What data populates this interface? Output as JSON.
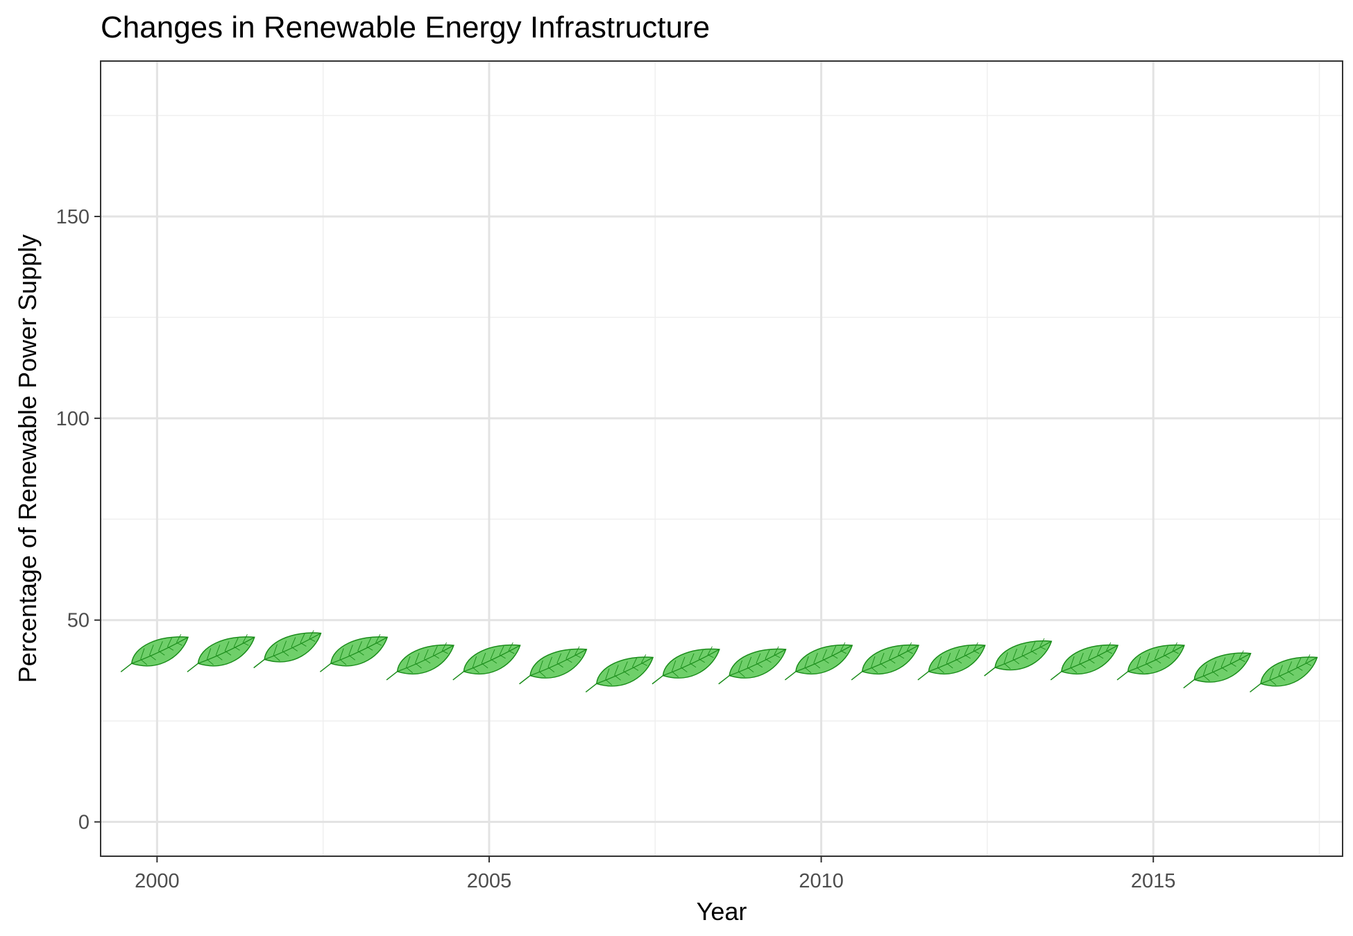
{
  "chart_data": {
    "type": "scatter",
    "marker": "leaf-icon",
    "title": "Changes in Renewable Energy Infrastructure",
    "xlabel": "Year",
    "ylabel": "Percentage of Renewable Power Supply",
    "x": [
      2000,
      2001,
      2002,
      2003,
      2004,
      2005,
      2006,
      2007,
      2008,
      2009,
      2010,
      2011,
      2012,
      2013,
      2014,
      2015,
      2016,
      2017
    ],
    "y": [
      41,
      41,
      42,
      41,
      39,
      39,
      38,
      36,
      38,
      38,
      39,
      39,
      39,
      40,
      39,
      39,
      37,
      36
    ],
    "xlim": [
      1999.15,
      2017.85
    ],
    "ylim": [
      -8.5,
      188.5
    ],
    "xticks": [
      2000,
      2005,
      2010,
      2015
    ],
    "yticks": [
      0,
      50,
      100,
      150
    ],
    "xtick_labels": [
      "2000",
      "2005",
      "2010",
      "2015"
    ],
    "ytick_labels": [
      "0",
      "50",
      "100",
      "150"
    ],
    "grid": true,
    "marker_fill": "#6fcf6a",
    "marker_stroke": "#1a8c1a"
  }
}
